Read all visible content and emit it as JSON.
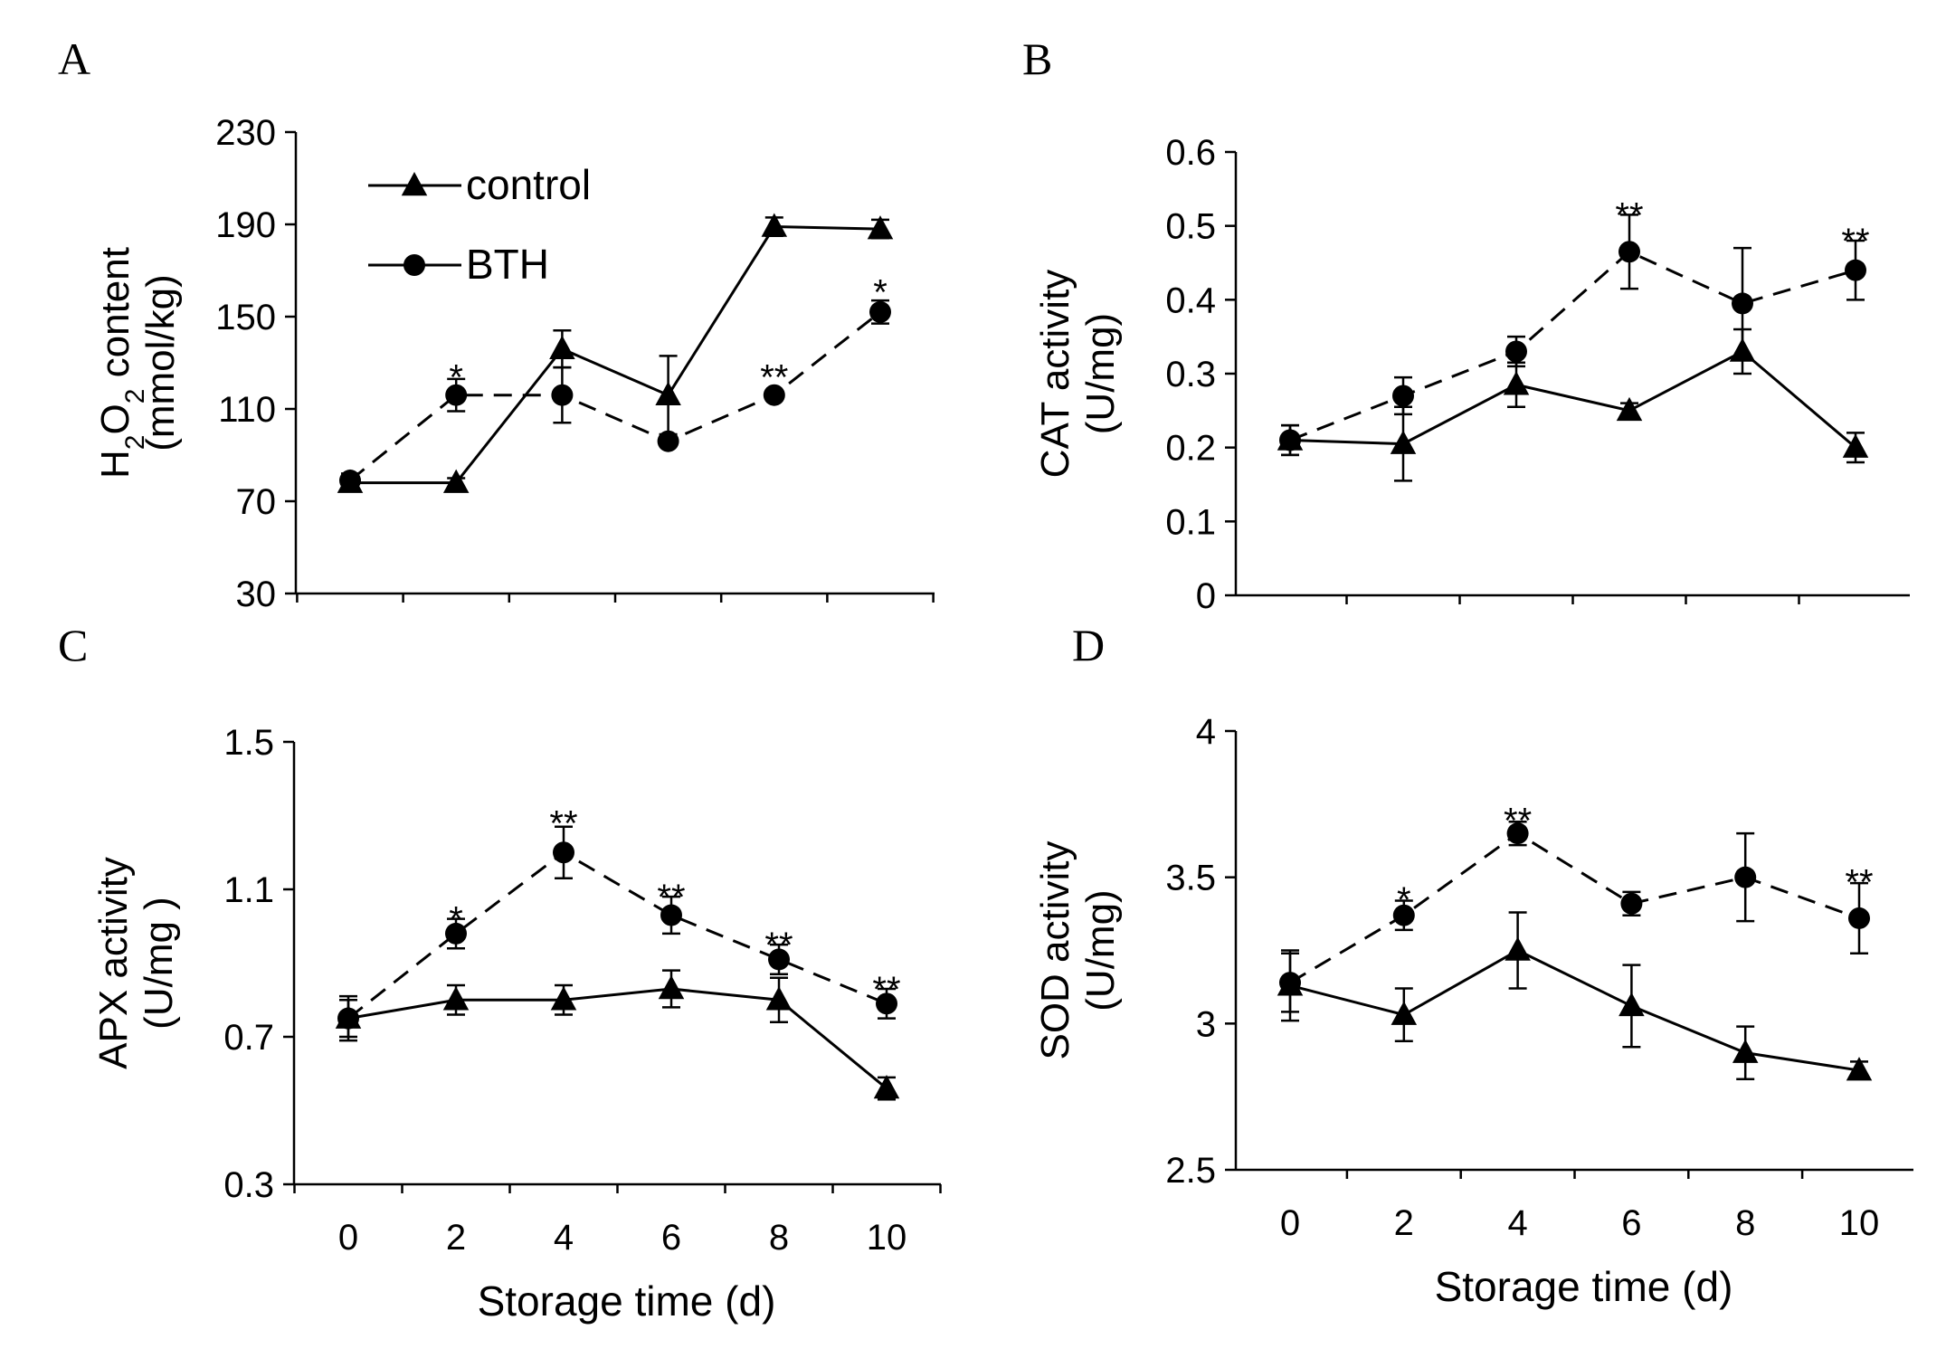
{
  "chart_data": [
    {
      "panel": "A",
      "type": "line",
      "x": [
        0,
        2,
        4,
        6,
        8,
        10
      ],
      "ylabel_line1": "H2O2 content",
      "ylabel_line2": "(mmol/kg)",
      "ylim": [
        30,
        230
      ],
      "yticks": [
        30,
        70,
        110,
        150,
        190,
        230
      ],
      "show_xticklabels": false,
      "xlabel": "",
      "legend": {
        "position": "top-left",
        "entries": [
          "control",
          "BTH"
        ]
      },
      "series": [
        {
          "name": "control",
          "marker": "triangle",
          "dash": false,
          "values": [
            78,
            78,
            136,
            116,
            189,
            188
          ],
          "errors": [
            3,
            2,
            8,
            17,
            4,
            4
          ]
        },
        {
          "name": "BTH",
          "marker": "circle",
          "dash": true,
          "values": [
            79,
            116,
            116,
            96,
            116,
            152
          ],
          "errors": [
            3,
            7,
            12,
            2,
            2,
            5
          ]
        }
      ],
      "significance": [
        {
          "x": 2,
          "y": 127,
          "label": "*"
        },
        {
          "x": 8,
          "y": 127,
          "label": "**"
        },
        {
          "x": 10,
          "y": 164,
          "label": "*"
        }
      ]
    },
    {
      "panel": "B",
      "type": "line",
      "x": [
        0,
        2,
        4,
        6,
        8,
        10
      ],
      "ylabel_line1": "CAT activity",
      "ylabel_line2": "(U/mg)",
      "ylim": [
        0,
        0.6
      ],
      "yticks": [
        "0",
        "0.1",
        "0.2",
        "0.3",
        "0.4",
        "0.5",
        "0.6"
      ],
      "show_xticklabels": false,
      "xlabel": "",
      "series": [
        {
          "name": "control",
          "marker": "triangle",
          "dash": false,
          "values": [
            0.21,
            0.205,
            0.285,
            0.25,
            0.33,
            0.2
          ],
          "errors": [
            0.02,
            0.05,
            0.03,
            0.01,
            0.03,
            0.02
          ]
        },
        {
          "name": "BTH",
          "marker": "circle",
          "dash": true,
          "values": [
            0.21,
            0.27,
            0.33,
            0.465,
            0.395,
            0.44
          ],
          "errors": [
            0.02,
            0.025,
            0.02,
            0.05,
            0.075,
            0.04
          ]
        }
      ],
      "significance": [
        {
          "x": 6,
          "y": 0.525,
          "label": "**"
        },
        {
          "x": 10,
          "y": 0.49,
          "label": "**"
        }
      ]
    },
    {
      "panel": "C",
      "type": "line",
      "x": [
        0,
        2,
        4,
        6,
        8,
        10
      ],
      "ylabel_line1": "APX activity",
      "ylabel_line2": "(U/mg )",
      "ylim": [
        0.3,
        1.5
      ],
      "yticks": [
        "0.3",
        "0.7",
        "1.1",
        "1.5"
      ],
      "show_xticklabels": true,
      "xlabel": "Storage time (d)",
      "series": [
        {
          "name": "control",
          "marker": "triangle",
          "dash": false,
          "values": [
            0.75,
            0.8,
            0.8,
            0.83,
            0.8,
            0.56
          ],
          "errors": [
            0.05,
            0.04,
            0.04,
            0.05,
            0.06,
            0.03
          ]
        },
        {
          "name": "BTH",
          "marker": "circle",
          "dash": true,
          "values": [
            0.75,
            0.98,
            1.2,
            1.03,
            0.91,
            0.79
          ],
          "errors": [
            0.06,
            0.04,
            0.07,
            0.05,
            0.04,
            0.04
          ]
        }
      ],
      "significance": [
        {
          "x": 2,
          "y": 1.04,
          "label": "*"
        },
        {
          "x": 4,
          "y": 1.3,
          "label": "**"
        },
        {
          "x": 6,
          "y": 1.1,
          "label": "**"
        },
        {
          "x": 8,
          "y": 0.97,
          "label": "**"
        },
        {
          "x": 10,
          "y": 0.85,
          "label": "**"
        }
      ]
    },
    {
      "panel": "D",
      "type": "line",
      "x": [
        0,
        2,
        4,
        6,
        8,
        10
      ],
      "ylabel_line1": "SOD activity",
      "ylabel_line2": "(U/mg)",
      "ylim": [
        2.5,
        4
      ],
      "yticks": [
        "2.5",
        "3",
        "3.5",
        "4"
      ],
      "show_xticklabels": true,
      "xlabel": "Storage time (d)",
      "series": [
        {
          "name": "control",
          "marker": "triangle",
          "dash": false,
          "values": [
            3.13,
            3.03,
            3.25,
            3.06,
            2.9,
            2.84
          ],
          "errors": [
            0.12,
            0.09,
            0.13,
            0.14,
            0.09,
            0.03
          ]
        },
        {
          "name": "BTH",
          "marker": "circle",
          "dash": true,
          "values": [
            3.14,
            3.37,
            3.65,
            3.41,
            3.5,
            3.36
          ],
          "errors": [
            0.1,
            0.05,
            0.04,
            0.04,
            0.15,
            0.12
          ]
        }
      ],
      "significance": [
        {
          "x": 2,
          "y": 3.45,
          "label": "*"
        },
        {
          "x": 4,
          "y": 3.72,
          "label": "**"
        },
        {
          "x": 10,
          "y": 3.51,
          "label": "**"
        }
      ]
    }
  ],
  "x_tick_labels": [
    "0",
    "2",
    "4",
    "6",
    "8",
    "10"
  ],
  "colors": {
    "ink": "#000000",
    "background": "#ffffff"
  }
}
